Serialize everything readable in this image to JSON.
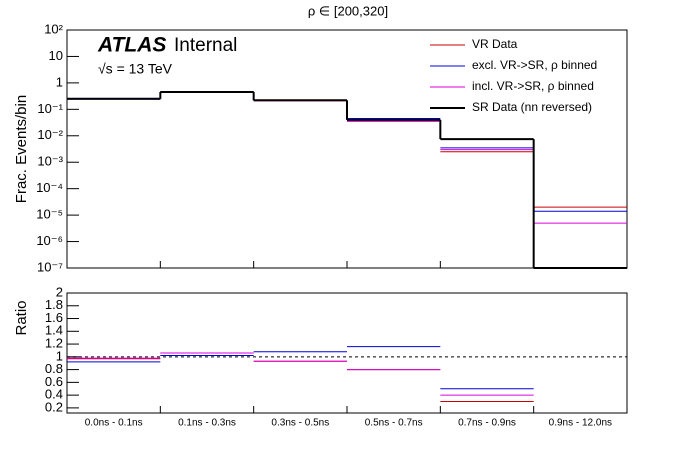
{
  "chart_data": [
    {
      "type": "step",
      "title": "ρ ∈ [200,320]",
      "y_label": "Frac. Events/bin",
      "annotations": {
        "experiment": "ATLAS",
        "status": "Internal",
        "energy": "√s = 13 TeV"
      },
      "categories": [
        "0.0ns - 0.1ns",
        "0.1ns - 0.3ns",
        "0.3ns - 0.5ns",
        "0.5ns - 0.7ns",
        "0.7ns - 0.9ns",
        "0.9ns - 12.0ns"
      ],
      "log_y": true,
      "ylim": [
        1e-07,
        100
      ],
      "yticks": [
        {
          "value": 1e-07,
          "label": "10⁻⁷"
        },
        {
          "value": 1e-06,
          "label": "10⁻⁶"
        },
        {
          "value": 1e-05,
          "label": "10⁻⁵"
        },
        {
          "value": 0.0001,
          "label": "10⁻⁴"
        },
        {
          "value": 0.001,
          "label": "10⁻³"
        },
        {
          "value": 0.01,
          "label": "10⁻²"
        },
        {
          "value": 0.1,
          "label": "10⁻¹"
        },
        1,
        10,
        {
          "value": 100,
          "label": "10²"
        }
      ],
      "legend": "top-right",
      "series": [
        {
          "name": "VR Data",
          "color": "#cc0000",
          "values": [
            0.25,
            0.45,
            0.21,
            0.038,
            0.0025,
            2e-05
          ]
        },
        {
          "name": "excl. VR->SR, ρ binned",
          "color": "#0000dd",
          "values": [
            0.24,
            0.46,
            0.22,
            0.045,
            0.0035,
            1.4e-05
          ]
        },
        {
          "name": "incl. VR->SR, ρ binned",
          "color": "#dd00dd",
          "values": [
            0.25,
            0.46,
            0.21,
            0.035,
            0.003,
            5e-06
          ]
        },
        {
          "name": "SR Data (nn reversed)",
          "color": "#000000",
          "values": [
            0.25,
            0.45,
            0.22,
            0.04,
            0.0075,
            0
          ]
        }
      ]
    },
    {
      "type": "step",
      "y_label": "Ratio",
      "ylim": [
        0.12,
        2
      ],
      "yticks": [
        0.2,
        0.4,
        0.6,
        0.8,
        1,
        1.2,
        1.4,
        1.6,
        1.8,
        2
      ],
      "reference_line": 1,
      "series": [
        {
          "color": "#cc0000",
          "values": [
            0.97,
            1.06,
            0.93,
            0.8,
            0.3
          ]
        },
        {
          "color": "#0000dd",
          "values": [
            0.92,
            1.02,
            1.08,
            1.16,
            0.5
          ]
        },
        {
          "color": "#dd00dd",
          "values": [
            0.98,
            1.06,
            0.93,
            0.8,
            0.4
          ]
        }
      ]
    }
  ]
}
